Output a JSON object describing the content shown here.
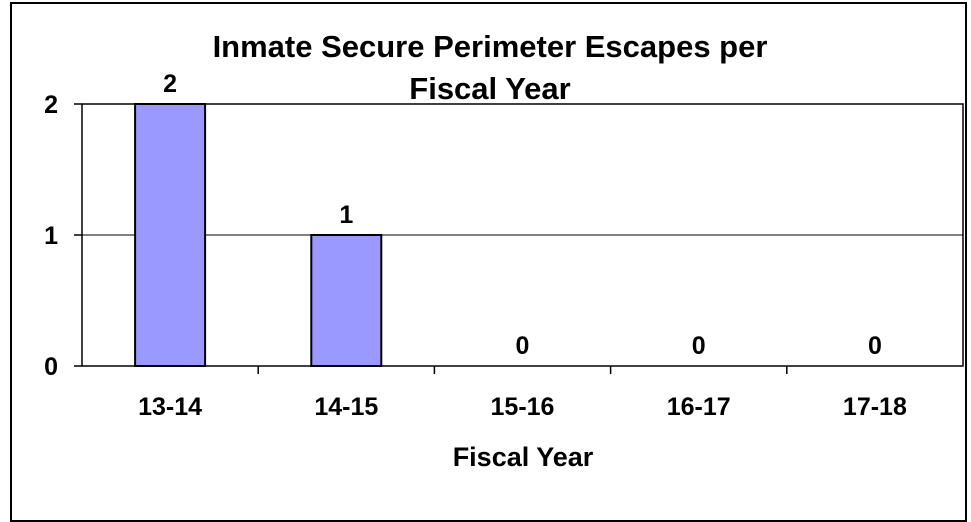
{
  "chart_data": {
    "type": "bar",
    "title_lines": [
      "Inmate Secure Perimeter Escapes per",
      "Fiscal Year"
    ],
    "xlabel": "Fiscal Year",
    "ylabel": "",
    "categories": [
      "13-14",
      "14-15",
      "15-16",
      "16-17",
      "17-18"
    ],
    "values": [
      2,
      1,
      0,
      0,
      0
    ],
    "data_labels": [
      "2",
      "1",
      "0",
      "0",
      "0"
    ],
    "ylim": [
      0,
      2
    ],
    "yticks": [
      0,
      1,
      2
    ],
    "grid": true,
    "legend": "none",
    "bar_color": "#9999ff",
    "bar_edge_color": "#000000"
  }
}
